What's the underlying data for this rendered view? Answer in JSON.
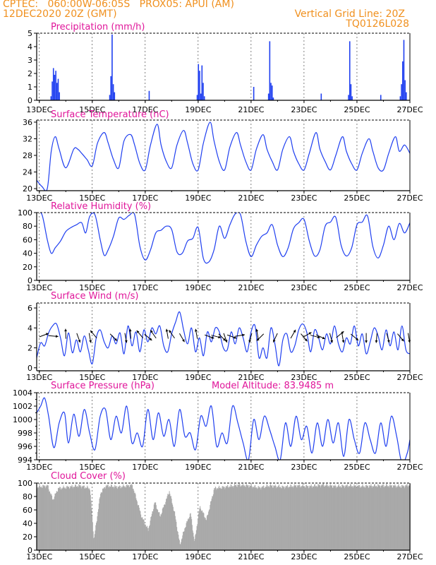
{
  "header": {
    "line1": "CPTEC:   060:00W-06:05S   PROX05: APUI (AM)",
    "line2": "12DEC2020 20Z (GMT)",
    "grid_note": "Vertical Grid Line: 20Z",
    "code": "TQ0126L028"
  },
  "colors": {
    "header": "#f0901e",
    "title": "#e0169a",
    "series": "#1f3ff0",
    "cloud": "#a9a9a9",
    "axis": "#000000"
  },
  "chart_data": [
    {
      "id": "precip",
      "type": "bar",
      "title": "Precipitation (mm/h)",
      "ylim": [
        0,
        5
      ],
      "yticks": [
        0,
        1,
        2,
        3,
        4,
        5
      ],
      "xticks": [
        "13DEC",
        "15DEC",
        "17DEC",
        "19DEC",
        "21DEC",
        "23DEC",
        "25DEC",
        "27DEC"
      ],
      "x_days": [
        12.9,
        27.0
      ],
      "peaks": [
        {
          "center": 13.6,
          "values": [
            0.3,
            1.4,
            2.4,
            1.9,
            2.2,
            1.3,
            1.6,
            0.6
          ]
        },
        {
          "center": 15.75,
          "values": [
            0.4,
            1.8,
            4.9,
            1.2,
            0.6
          ]
        },
        {
          "center": 17.15,
          "values": [
            0.7
          ]
        },
        {
          "center": 19.1,
          "values": [
            0.4,
            2.7,
            2.2,
            0.5,
            2.6,
            1.3,
            0.3
          ]
        },
        {
          "center": 21.1,
          "values": [
            1.0
          ]
        },
        {
          "center": 21.75,
          "values": [
            0.5,
            4.4,
            1.3,
            1.1,
            0.2
          ]
        },
        {
          "center": 23.65,
          "values": [
            0.5
          ]
        },
        {
          "center": 24.75,
          "values": [
            0.4,
            4.4,
            1.2,
            0.3
          ]
        },
        {
          "center": 25.9,
          "values": [
            0.4
          ]
        },
        {
          "center": 26.75,
          "values": [
            0.3,
            1.2,
            2.9,
            4.5,
            1.5,
            0.6
          ]
        }
      ]
    },
    {
      "id": "temp",
      "type": "line",
      "title": "Surface Temperature (nC)",
      "ylim": [
        19.5,
        36.5
      ],
      "yticks": [
        20,
        24,
        28,
        32,
        36
      ],
      "xticks": [
        "13DEC",
        "15DEC",
        "17DEC",
        "19DEC",
        "21DEC",
        "23DEC",
        "25DEC",
        "27DEC"
      ],
      "x_days": [
        12.9,
        27.0
      ],
      "x": [
        12.9,
        13.1,
        13.3,
        13.45,
        13.6,
        13.75,
        14.0,
        14.3,
        14.45,
        14.6,
        14.8,
        15.0,
        15.2,
        15.45,
        15.6,
        15.8,
        16.0,
        16.2,
        16.45,
        16.6,
        16.8,
        17.0,
        17.2,
        17.45,
        17.6,
        17.8,
        18.0,
        18.2,
        18.45,
        18.6,
        18.8,
        19.0,
        19.2,
        19.45,
        19.6,
        19.8,
        20.0,
        20.2,
        20.45,
        20.6,
        20.8,
        21.0,
        21.2,
        21.45,
        21.6,
        21.8,
        22.0,
        22.2,
        22.45,
        22.6,
        22.8,
        23.0,
        23.2,
        23.45,
        23.6,
        23.8,
        24.0,
        24.2,
        24.45,
        24.6,
        24.8,
        25.0,
        25.2,
        25.45,
        25.6,
        25.8,
        26.0,
        26.2,
        26.45,
        26.6,
        26.8,
        27.0
      ],
      "y": [
        22.0,
        20.5,
        20.0,
        29.0,
        32.5,
        29.5,
        25.0,
        29.5,
        29.5,
        28.5,
        27.0,
        25.5,
        31.0,
        33.5,
        31.0,
        27.0,
        25.0,
        31.5,
        33.0,
        30.5,
        26.0,
        24.5,
        30.5,
        35.5,
        30.5,
        26.5,
        25.0,
        30.5,
        34.0,
        31.0,
        26.0,
        24.5,
        31.0,
        36.0,
        31.5,
        26.5,
        24.5,
        30.0,
        33.5,
        30.5,
        26.5,
        24.5,
        29.5,
        33.0,
        29.5,
        26.5,
        24.5,
        29.5,
        32.5,
        29.0,
        26.0,
        24.5,
        28.5,
        33.5,
        29.5,
        26.5,
        24.5,
        28.0,
        32.5,
        29.0,
        26.0,
        24.5,
        28.5,
        32.0,
        29.0,
        25.0,
        24.5,
        28.5,
        32.5,
        29.0,
        30.5,
        28.5
      ]
    },
    {
      "id": "rh",
      "type": "line",
      "title": "Relative Humidity (%)",
      "ylim": [
        0,
        100
      ],
      "yticks": [
        0,
        20,
        40,
        60,
        80,
        100
      ],
      "xticks": [
        "13DEC",
        "15DEC",
        "17DEC",
        "19DEC",
        "21DEC",
        "23DEC",
        "25DEC",
        "27DEC"
      ],
      "x_days": [
        12.9,
        27.0
      ],
      "x": [
        12.9,
        13.1,
        13.3,
        13.45,
        13.6,
        13.8,
        14.0,
        14.2,
        14.4,
        14.6,
        14.75,
        14.9,
        15.1,
        15.3,
        15.45,
        15.6,
        15.8,
        16.0,
        16.2,
        16.4,
        16.6,
        16.8,
        17.0,
        17.2,
        17.4,
        17.6,
        17.8,
        18.0,
        18.2,
        18.4,
        18.6,
        18.8,
        19.0,
        19.2,
        19.4,
        19.6,
        19.8,
        20.0,
        20.2,
        20.4,
        20.6,
        20.8,
        21.0,
        21.2,
        21.4,
        21.6,
        21.8,
        22.0,
        22.2,
        22.4,
        22.6,
        22.8,
        23.0,
        23.2,
        23.4,
        23.6,
        23.8,
        24.0,
        24.2,
        24.4,
        24.6,
        24.8,
        25.0,
        25.2,
        25.4,
        25.6,
        25.8,
        26.0,
        26.2,
        26.4,
        26.6,
        26.8,
        27.0
      ],
      "y": [
        100,
        97,
        60,
        40,
        48,
        58,
        72,
        78,
        82,
        85,
        70,
        94,
        97,
        60,
        37,
        45,
        65,
        92,
        90,
        96,
        97,
        50,
        30,
        45,
        70,
        74,
        80,
        75,
        42,
        40,
        58,
        62,
        78,
        32,
        27,
        45,
        80,
        62,
        82,
        98,
        97,
        58,
        35,
        52,
        65,
        70,
        82,
        52,
        35,
        48,
        76,
        85,
        90,
        58,
        36,
        45,
        80,
        86,
        93,
        52,
        36,
        48,
        82,
        86,
        95,
        50,
        33,
        52,
        80,
        60,
        84,
        70,
        85
      ]
    },
    {
      "id": "wind",
      "type": "line",
      "title": "Surface Wind (m/s)",
      "ylim": [
        -0.3,
        6.5
      ],
      "yticks": [
        0,
        2,
        4,
        6
      ],
      "xticks": [
        "13DEC",
        "15DEC",
        "17DEC",
        "19DEC",
        "21DEC",
        "23DEC",
        "25DEC",
        "27DEC"
      ],
      "x_days": [
        12.9,
        27.0
      ],
      "x": [
        12.9,
        13.05,
        13.2,
        13.35,
        13.5,
        13.65,
        13.8,
        13.95,
        14.1,
        14.25,
        14.4,
        14.55,
        14.7,
        14.85,
        15.0,
        15.15,
        15.3,
        15.45,
        15.6,
        15.75,
        15.9,
        16.05,
        16.2,
        16.35,
        16.5,
        16.65,
        16.8,
        16.95,
        17.1,
        17.25,
        17.4,
        17.55,
        17.7,
        17.85,
        18.0,
        18.15,
        18.3,
        18.45,
        18.6,
        18.75,
        18.9,
        19.05,
        19.2,
        19.35,
        19.5,
        19.65,
        19.8,
        19.95,
        20.1,
        20.25,
        20.4,
        20.55,
        20.7,
        20.85,
        21.0,
        21.15,
        21.3,
        21.45,
        21.6,
        21.75,
        21.9,
        22.05,
        22.2,
        22.35,
        22.5,
        22.65,
        22.8,
        22.95,
        23.1,
        23.25,
        23.4,
        23.55,
        23.7,
        23.85,
        24.0,
        24.15,
        24.3,
        24.45,
        24.6,
        24.75,
        24.9,
        25.05,
        25.2,
        25.35,
        25.5,
        25.65,
        25.8,
        25.95,
        26.1,
        26.25,
        26.4,
        26.55,
        26.7,
        26.85,
        27.0
      ],
      "y": [
        1.0,
        2.5,
        2.2,
        3.5,
        4.2,
        4.4,
        3.0,
        1.2,
        3.5,
        1.5,
        2.8,
        1.6,
        3.2,
        1.8,
        0.4,
        3.0,
        3.8,
        2.6,
        2.0,
        3.2,
        2.4,
        3.5,
        1.4,
        4.2,
        2.2,
        3.6,
        1.6,
        3.8,
        2.6,
        4.0,
        3.4,
        4.2,
        2.2,
        1.6,
        3.4,
        4.6,
        5.6,
        3.8,
        2.4,
        4.0,
        1.6,
        3.0,
        1.2,
        3.6,
        2.6,
        4.0,
        3.6,
        2.0,
        1.8,
        3.6,
        2.4,
        4.0,
        3.0,
        1.6,
        3.6,
        4.2,
        1.0,
        2.0,
        1.0,
        4.0,
        2.4,
        0.2,
        2.8,
        3.4,
        1.6,
        2.2,
        3.8,
        4.4,
        3.6,
        1.6,
        3.8,
        3.0,
        1.8,
        3.4,
        2.4,
        4.2,
        2.4,
        1.6,
        3.0,
        2.4,
        4.2,
        2.2,
        3.4,
        1.4,
        2.6,
        4.0,
        3.2,
        1.8,
        3.8,
        2.2,
        3.6,
        1.8,
        4.2,
        1.8,
        1.4
      ],
      "barbs": [
        [
          13.1,
          21
        ],
        [
          13.45,
          -5
        ],
        [
          14.0,
          92
        ],
        [
          14.45,
          -70
        ],
        [
          14.9,
          -80
        ],
        [
          15.1,
          130
        ],
        [
          15.75,
          -45
        ],
        [
          16.25,
          -80
        ],
        [
          16.45,
          95
        ],
        [
          16.85,
          130
        ],
        [
          17.05,
          -40
        ],
        [
          17.35,
          125
        ],
        [
          17.85,
          100
        ],
        [
          18.05,
          125
        ],
        [
          18.35,
          -60
        ],
        [
          18.95,
          100
        ],
        [
          19.35,
          -20
        ],
        [
          19.6,
          -15
        ],
        [
          19.85,
          -45
        ],
        [
          20.0,
          -70
        ],
        [
          20.2,
          -20
        ],
        [
          20.5,
          10
        ],
        [
          21.0,
          -105
        ],
        [
          21.25,
          100
        ],
        [
          21.4,
          -135
        ],
        [
          21.95,
          -115
        ],
        [
          22.55,
          60
        ],
        [
          22.95,
          -50
        ],
        [
          23.05,
          30
        ],
        [
          23.35,
          -15
        ],
        [
          23.55,
          -25
        ],
        [
          24.0,
          -75
        ],
        [
          24.3,
          40
        ],
        [
          24.45,
          -80
        ],
        [
          24.85,
          -40
        ],
        [
          25.35,
          -90
        ],
        [
          25.75,
          -95
        ],
        [
          26.15,
          -75
        ],
        [
          26.6,
          -50
        ],
        [
          26.95,
          -80
        ]
      ]
    },
    {
      "id": "pres",
      "type": "line",
      "title": "Surface Pressure (hPa)",
      "subtitle": "Model Altitude: 83.9485 m",
      "ylim": [
        994,
        1004
      ],
      "yticks": [
        994,
        996,
        998,
        1000,
        1002,
        1004
      ],
      "xticks": [
        "13DEC",
        "15DEC",
        "17DEC",
        "19DEC",
        "21DEC",
        "23DEC",
        "25DEC",
        "27DEC"
      ],
      "x_days": [
        12.9,
        27.0
      ],
      "x": [
        12.9,
        13.05,
        13.2,
        13.35,
        13.55,
        13.75,
        13.95,
        14.1,
        14.3,
        14.5,
        14.7,
        14.9,
        15.1,
        15.3,
        15.5,
        15.7,
        15.9,
        16.1,
        16.3,
        16.5,
        16.7,
        16.9,
        17.1,
        17.3,
        17.5,
        17.7,
        17.9,
        18.1,
        18.3,
        18.5,
        18.7,
        18.9,
        19.1,
        19.3,
        19.5,
        19.7,
        19.9,
        20.1,
        20.3,
        20.5,
        20.7,
        20.9,
        21.1,
        21.3,
        21.5,
        21.7,
        21.9,
        22.1,
        22.3,
        22.5,
        22.7,
        22.9,
        23.1,
        23.3,
        23.5,
        23.7,
        23.9,
        24.1,
        24.3,
        24.5,
        24.7,
        24.9,
        25.1,
        25.3,
        25.5,
        25.7,
        25.9,
        26.1,
        26.3,
        26.5,
        26.7,
        26.9,
        27.0
      ],
      "y": [
        1001.0,
        1002.0,
        1003.2,
        1000.5,
        995.8,
        999.5,
        1001.0,
        996.5,
        1000.8,
        997.5,
        1001.5,
        998.0,
        995.5,
        1000.5,
        1001.5,
        997.0,
        1000.5,
        998.0,
        1002.0,
        996.5,
        998.0,
        996.0,
        1001.5,
        997.0,
        1001.0,
        997.5,
        1000.0,
        996.0,
        1001.5,
        997.5,
        998.0,
        995.5,
        1000.5,
        999.0,
        1002.0,
        996.0,
        998.0,
        996.5,
        1002.0,
        999.5,
        996.5,
        994.0,
        1000.0,
        997.0,
        1000.5,
        998.5,
        996.0,
        994.0,
        999.5,
        996.0,
        1000.5,
        997.0,
        999.0,
        995.0,
        999.5,
        996.0,
        1000.0,
        996.5,
        999.5,
        994.5,
        1000.0,
        997.0,
        995.0,
        999.5,
        997.0,
        995.0,
        999.5,
        996.0,
        1000.5,
        997.5,
        993.5,
        995.0,
        997.0
      ]
    },
    {
      "id": "cloud",
      "type": "bar",
      "title": "Cloud Cover (%)",
      "ylim": [
        0,
        100
      ],
      "yticks": [
        0,
        20,
        40,
        60,
        80,
        100
      ],
      "xticks": [
        "13DEC",
        "15DEC",
        "17DEC",
        "19DEC",
        "21DEC",
        "23DEC",
        "25DEC",
        "27DEC"
      ],
      "x_days": [
        12.9,
        27.0
      ],
      "profile": [
        [
          12.9,
          94
        ],
        [
          13.3,
          96
        ],
        [
          13.5,
          75
        ],
        [
          13.7,
          92
        ],
        [
          14.1,
          94
        ],
        [
          14.5,
          96
        ],
        [
          14.9,
          92
        ],
        [
          15.05,
          15
        ],
        [
          15.3,
          85
        ],
        [
          15.5,
          96
        ],
        [
          16.0,
          94
        ],
        [
          16.5,
          97
        ],
        [
          16.85,
          50
        ],
        [
          17.1,
          30
        ],
        [
          17.35,
          72
        ],
        [
          17.55,
          50
        ],
        [
          17.9,
          88
        ],
        [
          18.1,
          55
        ],
        [
          18.3,
          8
        ],
        [
          18.5,
          35
        ],
        [
          18.7,
          55
        ],
        [
          18.85,
          12
        ],
        [
          19.05,
          65
        ],
        [
          19.3,
          45
        ],
        [
          19.6,
          92
        ],
        [
          20.0,
          94
        ],
        [
          20.5,
          97
        ],
        [
          20.9,
          96
        ],
        [
          21.3,
          93
        ],
        [
          21.7,
          96
        ],
        [
          22.2,
          94
        ],
        [
          22.7,
          96
        ],
        [
          23.2,
          95
        ],
        [
          23.7,
          97
        ],
        [
          24.2,
          95
        ],
        [
          24.7,
          96
        ],
        [
          25.2,
          95
        ],
        [
          25.7,
          96
        ],
        [
          26.2,
          96
        ],
        [
          26.7,
          95
        ],
        [
          27.0,
          97
        ]
      ]
    }
  ]
}
